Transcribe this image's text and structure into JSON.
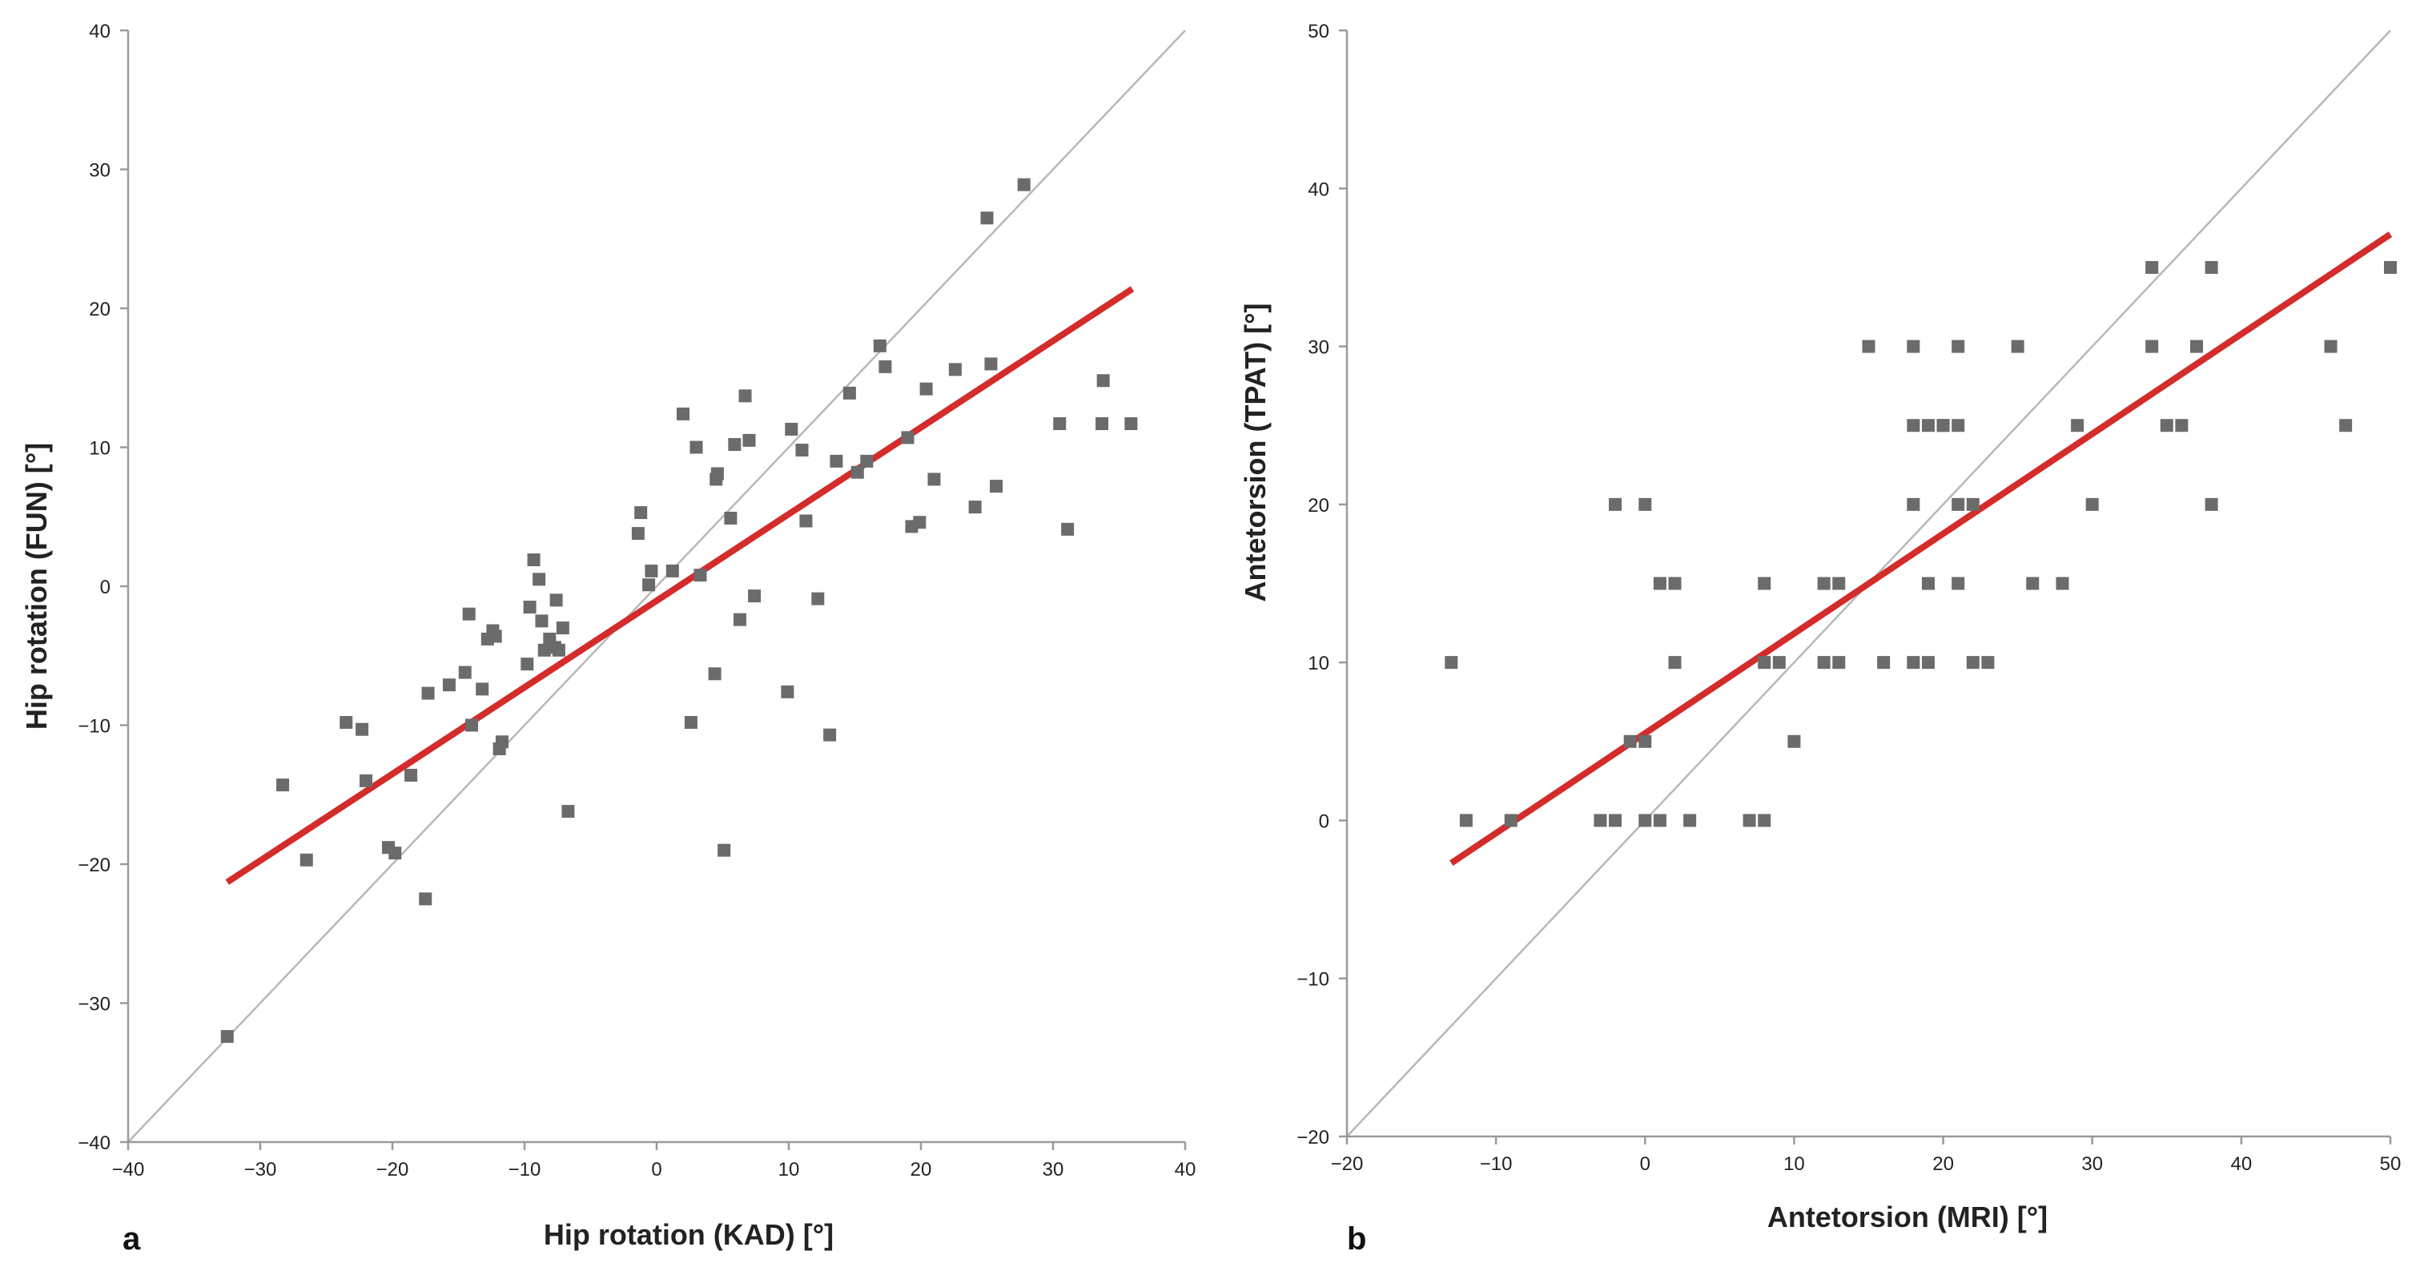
{
  "colors": {
    "points": "#6b6b6b",
    "fit": "#d42b2b",
    "identity": "#b8b8b8",
    "axis": "#9a9a9a"
  },
  "chart_data": [
    {
      "panel": "a",
      "type": "scatter",
      "title": "",
      "xlabel": "Hip rotation (KAD) [°]",
      "ylabel": "Hip rotation (FUN) [°]",
      "xlim": [
        -40,
        40
      ],
      "ylim": [
        -40,
        40
      ],
      "xticks": [
        -40,
        -30,
        -20,
        -10,
        0,
        10,
        20,
        30,
        40
      ],
      "yticks": [
        -40,
        -30,
        -20,
        -10,
        0,
        10,
        20,
        30,
        40
      ],
      "identity_line": [
        [
          -40,
          -40
        ],
        [
          40,
          40
        ]
      ],
      "fit_line": [
        [
          -32.5,
          -21.3
        ],
        [
          36,
          21.4
        ]
      ],
      "points": [
        [
          -32.5,
          -32.4
        ],
        [
          -28.3,
          -14.3
        ],
        [
          -26.5,
          -19.7
        ],
        [
          -23.5,
          -9.8
        ],
        [
          -22.3,
          -10.3
        ],
        [
          -22,
          -14
        ],
        [
          -20.3,
          -18.8
        ],
        [
          -19.8,
          -19.2
        ],
        [
          -18.6,
          -13.6
        ],
        [
          -17.5,
          -22.5
        ],
        [
          -17.3,
          -7.7
        ],
        [
          -15.7,
          -7.1
        ],
        [
          -14.5,
          -6.2
        ],
        [
          -14.2,
          -2
        ],
        [
          -14,
          -10
        ],
        [
          -13.2,
          -7.4
        ],
        [
          -12.8,
          -3.8
        ],
        [
          -12.4,
          -3.2
        ],
        [
          -12.2,
          -3.6
        ],
        [
          -11.9,
          -11.7
        ],
        [
          -11.7,
          -11.2
        ],
        [
          -9.8,
          -5.6
        ],
        [
          -9.6,
          -1.5
        ],
        [
          -9.3,
          1.9
        ],
        [
          -8.9,
          0.5
        ],
        [
          -8.7,
          -2.5
        ],
        [
          -8.5,
          -4.6
        ],
        [
          -8.1,
          -3.8
        ],
        [
          -7.7,
          -4.4
        ],
        [
          -7.6,
          -1
        ],
        [
          -7.4,
          -4.6
        ],
        [
          -7.1,
          -3
        ],
        [
          -6.7,
          -16.2
        ],
        [
          -1.4,
          3.8
        ],
        [
          -1.2,
          5.3
        ],
        [
          -0.6,
          0.1
        ],
        [
          -0.4,
          1.1
        ],
        [
          1.2,
          1.1
        ],
        [
          2,
          12.4
        ],
        [
          2.6,
          -9.8
        ],
        [
          3,
          10
        ],
        [
          3.3,
          0.8
        ],
        [
          4.4,
          -6.3
        ],
        [
          4.5,
          7.7
        ],
        [
          4.6,
          8.1
        ],
        [
          5.1,
          -19
        ],
        [
          5.6,
          4.9
        ],
        [
          5.9,
          10.2
        ],
        [
          6.3,
          -2.4
        ],
        [
          6.7,
          13.7
        ],
        [
          7,
          10.5
        ],
        [
          7.4,
          -0.7
        ],
        [
          9.9,
          -7.6
        ],
        [
          10.2,
          11.3
        ],
        [
          11,
          9.8
        ],
        [
          11.3,
          4.7
        ],
        [
          12.2,
          -0.9
        ],
        [
          13.1,
          -10.7
        ],
        [
          13.6,
          9
        ],
        [
          14.6,
          13.9
        ],
        [
          15.2,
          8.2
        ],
        [
          15.9,
          9
        ],
        [
          16.9,
          17.3
        ],
        [
          17.3,
          15.8
        ],
        [
          19,
          10.7
        ],
        [
          19.3,
          4.3
        ],
        [
          19.9,
          4.6
        ],
        [
          20.4,
          14.2
        ],
        [
          21,
          7.7
        ],
        [
          22.6,
          15.6
        ],
        [
          24.1,
          5.7
        ],
        [
          25,
          26.5
        ],
        [
          25.3,
          16
        ],
        [
          25.7,
          7.2
        ],
        [
          27.8,
          28.9
        ],
        [
          30.5,
          11.7
        ],
        [
          31.1,
          4.1
        ],
        [
          33.7,
          11.7
        ],
        [
          33.8,
          14.8
        ],
        [
          35.9,
          11.7
        ]
      ]
    },
    {
      "panel": "b",
      "type": "scatter",
      "title": "",
      "xlabel": "Antetorsion (MRI) [°]",
      "ylabel": "Antetorsion (TPAT) [°]",
      "xlim": [
        -20,
        50
      ],
      "ylim": [
        -20,
        50
      ],
      "xticks": [
        -20,
        -10,
        0,
        10,
        20,
        30,
        40,
        50
      ],
      "yticks": [
        -20,
        -10,
        0,
        10,
        20,
        30,
        40,
        50
      ],
      "identity_line": [
        [
          -20,
          -20
        ],
        [
          50,
          50
        ]
      ],
      "fit_line": [
        [
          -13,
          -2.7
        ],
        [
          50,
          37.1
        ]
      ],
      "points": [
        [
          -13,
          10
        ],
        [
          -12,
          0
        ],
        [
          -9,
          0
        ],
        [
          -3,
          0
        ],
        [
          -2,
          20
        ],
        [
          -2,
          0
        ],
        [
          -1,
          5
        ],
        [
          0,
          5
        ],
        [
          0,
          20
        ],
        [
          0,
          0
        ],
        [
          1,
          15
        ],
        [
          1,
          0
        ],
        [
          2,
          15
        ],
        [
          2,
          10
        ],
        [
          3,
          0
        ],
        [
          7,
          0
        ],
        [
          8,
          15
        ],
        [
          8,
          10
        ],
        [
          8,
          0
        ],
        [
          9,
          10
        ],
        [
          10,
          5
        ],
        [
          12,
          15
        ],
        [
          12,
          10
        ],
        [
          13,
          15
        ],
        [
          13,
          10
        ],
        [
          15,
          30
        ],
        [
          16,
          10
        ],
        [
          18,
          30
        ],
        [
          18,
          25
        ],
        [
          18,
          20
        ],
        [
          18,
          10
        ],
        [
          19,
          25
        ],
        [
          19,
          15
        ],
        [
          19,
          10
        ],
        [
          20,
          25
        ],
        [
          20,
          25
        ],
        [
          21,
          30
        ],
        [
          21,
          25
        ],
        [
          21,
          20
        ],
        [
          21,
          15
        ],
        [
          22,
          20
        ],
        [
          22,
          10
        ],
        [
          23,
          10
        ],
        [
          25,
          30
        ],
        [
          26,
          15
        ],
        [
          28,
          15
        ],
        [
          28,
          15
        ],
        [
          29,
          25
        ],
        [
          30,
          20
        ],
        [
          34,
          35
        ],
        [
          34,
          30
        ],
        [
          35,
          25
        ],
        [
          36,
          25
        ],
        [
          37,
          30
        ],
        [
          38,
          35
        ],
        [
          38,
          20
        ],
        [
          46,
          30
        ],
        [
          47,
          25
        ],
        [
          50,
          35
        ]
      ]
    }
  ]
}
